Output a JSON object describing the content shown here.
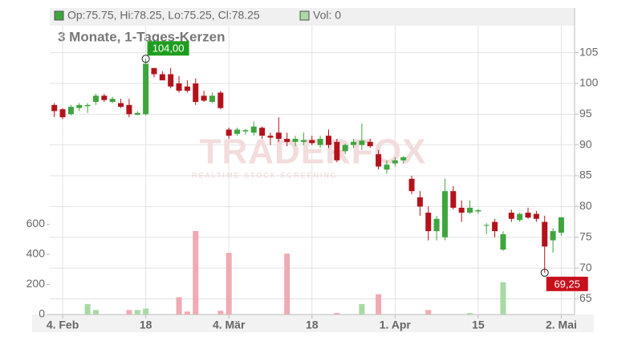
{
  "chart_data": {
    "type": "candlestick",
    "title": "3 Monate, 1-Tages-Kerzen",
    "legend": {
      "ohlc": "Op:75.75, Hi:78.25, Lo:75.25, Cl:78.25",
      "volume": "Vol: 0"
    },
    "watermark": [
      "TRADERFOX",
      "REALTIME STOCK SCREENING"
    ],
    "up_color": "#3fa53f",
    "down_color": "#b3121c",
    "volume_up_color": "#a9d9a4",
    "volume_down_color": "#efaab3",
    "grid": true,
    "x": [
      -1,
      0,
      1,
      2,
      3,
      4,
      5,
      6,
      7,
      8,
      9,
      10,
      11,
      12,
      13,
      14,
      15,
      16,
      17,
      18,
      19,
      20,
      21,
      22,
      23,
      24,
      25,
      26,
      27,
      28,
      29,
      30,
      31,
      32,
      33,
      34,
      35,
      36,
      37,
      38,
      39,
      40,
      41,
      42,
      43,
      44,
      45,
      46,
      47,
      48,
      49,
      50,
      51,
      52,
      53,
      54,
      55,
      56,
      57,
      58,
      59,
      60
    ],
    "open": [
      96.5,
      95.8,
      95,
      96,
      96.3,
      97,
      98,
      97,
      96.8,
      96.5,
      94.9,
      95,
      102.5,
      101.5,
      101.5,
      100,
      99.5,
      100,
      98,
      97,
      98.5,
      92.5,
      91.8,
      92.2,
      92,
      92.8,
      91.5,
      92,
      91,
      90.5,
      90.5,
      90.8,
      90,
      91.5,
      90.5,
      89,
      90,
      90,
      90.5,
      88.5,
      86,
      87,
      87.5,
      84.5,
      81.5,
      79,
      76,
      75,
      82.5,
      79.8,
      79,
      79.2,
      76.9,
      77.5,
      73,
      79,
      77.8,
      79,
      78.8,
      77.5,
      74.5,
      75.75
    ],
    "high": [
      96.8,
      96,
      96.5,
      96.8,
      96.8,
      98.3,
      98.3,
      97.8,
      97.5,
      97.5,
      95.5,
      104,
      102.5,
      102,
      102.5,
      101.2,
      100.5,
      100.8,
      98.8,
      98.5,
      98.8,
      92.8,
      92.8,
      92.6,
      93.8,
      93,
      92,
      94.5,
      92,
      91.5,
      92,
      91.5,
      91.5,
      92.5,
      91,
      90.2,
      91,
      93.5,
      91,
      89.2,
      87.5,
      88,
      88.2,
      85,
      82.5,
      80,
      78.5,
      84.5,
      83.3,
      81,
      81,
      79.6,
      77.3,
      78,
      76,
      79.5,
      79,
      79.8,
      79.3,
      78.5,
      76.5,
      78.25
    ],
    "low": [
      94.5,
      94.2,
      94.8,
      95.5,
      95.2,
      96.5,
      97,
      96.8,
      96,
      94.5,
      94.8,
      94.8,
      101,
      100.5,
      99.2,
      98.5,
      98.5,
      96.5,
      97,
      96.8,
      95.8,
      91,
      91.5,
      91.7,
      91.5,
      91,
      90,
      90.5,
      89.8,
      89.8,
      90,
      90,
      89.5,
      89.5,
      87.2,
      88.5,
      89.5,
      89.2,
      89.5,
      86,
      85.3,
      86.5,
      87,
      82,
      78.5,
      74.5,
      74.5,
      74.5,
      79.5,
      77.5,
      78.8,
      78.8,
      75.5,
      75,
      72.8,
      77.5,
      77.5,
      78,
      77.5,
      69.25,
      72.5,
      75.25
    ],
    "close": [
      95.5,
      94.5,
      96.2,
      96.5,
      96.5,
      98,
      97.3,
      97.5,
      96.2,
      95,
      95.2,
      103.2,
      101.5,
      100.5,
      99.5,
      98.8,
      98.8,
      97,
      97.2,
      98,
      96,
      91.5,
      92.5,
      92.4,
      93,
      91.5,
      91.2,
      91,
      90.5,
      91,
      90.8,
      90.3,
      91,
      90,
      87.5,
      90,
      90.5,
      90.7,
      89.8,
      86.5,
      86.8,
      87.5,
      88,
      82.5,
      80,
      76,
      78,
      82.5,
      79.8,
      79,
      79.8,
      79.4,
      77,
      76,
      75.5,
      78,
      78.8,
      78.2,
      78,
      73.5,
      76,
      78.25
    ],
    "volume": [
      0,
      0,
      0,
      0,
      70,
      30,
      0,
      0,
      0,
      30,
      30,
      40,
      0,
      0,
      0,
      115,
      20,
      555,
      0,
      0,
      25,
      410,
      0,
      0,
      0,
      0,
      0,
      0,
      405,
      0,
      0,
      0,
      0,
      0,
      10,
      0,
      0,
      70,
      0,
      135,
      0,
      0,
      0,
      0,
      0,
      30,
      0,
      0,
      0,
      0,
      10,
      0,
      0,
      0,
      215,
      0,
      0,
      0,
      0,
      0,
      0,
      0
    ],
    "xlim": [
      -1.55,
      61.6
    ],
    "xticks": [
      {
        "value": 0,
        "label": "4. Feb"
      },
      {
        "value": 10,
        "label": "18"
      },
      {
        "value": 20,
        "label": "4. Mär"
      },
      {
        "value": 30,
        "label": "18"
      },
      {
        "value": 40,
        "label": "1. Apr"
      },
      {
        "value": 50,
        "label": "15"
      },
      {
        "value": 60,
        "label": "2. Mai"
      }
    ],
    "ylim": [
      62.45,
      112.25
    ],
    "yticks": [
      65,
      70,
      75,
      80,
      85,
      90,
      95,
      100,
      105
    ],
    "volume_ylim": [
      0,
      2037
    ],
    "volume_ticks": [
      0,
      200,
      400,
      600
    ],
    "annotations": [
      {
        "value": 104,
        "label": "104,00",
        "x": 10,
        "kind": "max"
      },
      {
        "value": 69.25,
        "label": "69,25",
        "x": 58,
        "kind": "min"
      }
    ]
  }
}
